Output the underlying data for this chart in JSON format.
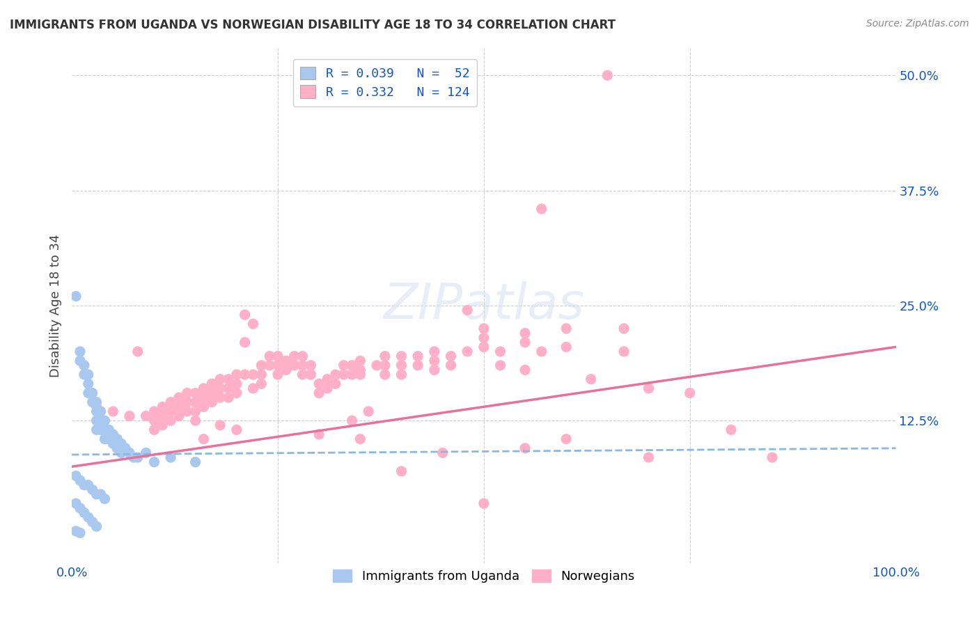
{
  "title": "IMMIGRANTS FROM UGANDA VS NORWEGIAN DISABILITY AGE 18 TO 34 CORRELATION CHART",
  "source": "Source: ZipAtlas.com",
  "ylabel": "Disability Age 18 to 34",
  "xlim": [
    0.0,
    1.0
  ],
  "ylim": [
    -0.03,
    0.53
  ],
  "ytick_values": [
    0.125,
    0.25,
    0.375,
    0.5
  ],
  "ytick_labels": [
    "12.5%",
    "25.0%",
    "37.5%",
    "50.0%"
  ],
  "grid_color": "#cccccc",
  "background_color": "#ffffff",
  "uganda_color": "#a8c8f0",
  "norway_color": "#ffb0c8",
  "uganda_line_color": "#88b8e8",
  "norway_line_color": "#e8709a",
  "uganda_R": 0.039,
  "uganda_N": 52,
  "norway_R": 0.332,
  "norway_N": 124,
  "legend_R_color": "#1155cc",
  "legend_label_uganda": "Immigrants from Uganda",
  "legend_label_norway": "Norwegians",
  "uganda_scatter": [
    [
      0.005,
      0.26
    ],
    [
      0.01,
      0.2
    ],
    [
      0.01,
      0.19
    ],
    [
      0.015,
      0.185
    ],
    [
      0.015,
      0.175
    ],
    [
      0.02,
      0.175
    ],
    [
      0.02,
      0.165
    ],
    [
      0.02,
      0.155
    ],
    [
      0.025,
      0.155
    ],
    [
      0.025,
      0.145
    ],
    [
      0.03,
      0.145
    ],
    [
      0.03,
      0.135
    ],
    [
      0.03,
      0.125
    ],
    [
      0.03,
      0.115
    ],
    [
      0.035,
      0.135
    ],
    [
      0.035,
      0.125
    ],
    [
      0.035,
      0.115
    ],
    [
      0.04,
      0.125
    ],
    [
      0.04,
      0.115
    ],
    [
      0.04,
      0.105
    ],
    [
      0.045,
      0.115
    ],
    [
      0.045,
      0.105
    ],
    [
      0.05,
      0.11
    ],
    [
      0.05,
      0.1
    ],
    [
      0.055,
      0.105
    ],
    [
      0.055,
      0.095
    ],
    [
      0.06,
      0.1
    ],
    [
      0.06,
      0.09
    ],
    [
      0.065,
      0.095
    ],
    [
      0.07,
      0.09
    ],
    [
      0.075,
      0.085
    ],
    [
      0.08,
      0.085
    ],
    [
      0.09,
      0.09
    ],
    [
      0.1,
      0.08
    ],
    [
      0.12,
      0.085
    ],
    [
      0.15,
      0.08
    ],
    [
      0.005,
      0.065
    ],
    [
      0.01,
      0.06
    ],
    [
      0.015,
      0.055
    ],
    [
      0.02,
      0.055
    ],
    [
      0.025,
      0.05
    ],
    [
      0.03,
      0.045
    ],
    [
      0.035,
      0.045
    ],
    [
      0.04,
      0.04
    ],
    [
      0.005,
      0.035
    ],
    [
      0.01,
      0.03
    ],
    [
      0.015,
      0.025
    ],
    [
      0.02,
      0.02
    ],
    [
      0.025,
      0.015
    ],
    [
      0.03,
      0.01
    ],
    [
      0.005,
      0.005
    ],
    [
      0.01,
      0.003
    ]
  ],
  "norway_scatter": [
    [
      0.03,
      0.14
    ],
    [
      0.05,
      0.135
    ],
    [
      0.07,
      0.13
    ],
    [
      0.08,
      0.2
    ],
    [
      0.09,
      0.13
    ],
    [
      0.1,
      0.135
    ],
    [
      0.1,
      0.125
    ],
    [
      0.1,
      0.115
    ],
    [
      0.11,
      0.14
    ],
    [
      0.11,
      0.13
    ],
    [
      0.11,
      0.12
    ],
    [
      0.12,
      0.145
    ],
    [
      0.12,
      0.135
    ],
    [
      0.12,
      0.125
    ],
    [
      0.13,
      0.15
    ],
    [
      0.13,
      0.14
    ],
    [
      0.13,
      0.13
    ],
    [
      0.14,
      0.155
    ],
    [
      0.14,
      0.145
    ],
    [
      0.14,
      0.135
    ],
    [
      0.15,
      0.155
    ],
    [
      0.15,
      0.145
    ],
    [
      0.15,
      0.135
    ],
    [
      0.15,
      0.125
    ],
    [
      0.16,
      0.16
    ],
    [
      0.16,
      0.15
    ],
    [
      0.16,
      0.14
    ],
    [
      0.16,
      0.105
    ],
    [
      0.17,
      0.165
    ],
    [
      0.17,
      0.155
    ],
    [
      0.17,
      0.145
    ],
    [
      0.18,
      0.17
    ],
    [
      0.18,
      0.16
    ],
    [
      0.18,
      0.15
    ],
    [
      0.18,
      0.12
    ],
    [
      0.19,
      0.17
    ],
    [
      0.19,
      0.16
    ],
    [
      0.19,
      0.15
    ],
    [
      0.2,
      0.175
    ],
    [
      0.2,
      0.165
    ],
    [
      0.2,
      0.155
    ],
    [
      0.2,
      0.115
    ],
    [
      0.21,
      0.24
    ],
    [
      0.21,
      0.21
    ],
    [
      0.21,
      0.175
    ],
    [
      0.22,
      0.23
    ],
    [
      0.22,
      0.175
    ],
    [
      0.22,
      0.16
    ],
    [
      0.23,
      0.185
    ],
    [
      0.23,
      0.175
    ],
    [
      0.23,
      0.165
    ],
    [
      0.24,
      0.195
    ],
    [
      0.24,
      0.185
    ],
    [
      0.25,
      0.195
    ],
    [
      0.25,
      0.185
    ],
    [
      0.25,
      0.175
    ],
    [
      0.26,
      0.19
    ],
    [
      0.26,
      0.18
    ],
    [
      0.27,
      0.195
    ],
    [
      0.27,
      0.185
    ],
    [
      0.28,
      0.195
    ],
    [
      0.28,
      0.185
    ],
    [
      0.28,
      0.175
    ],
    [
      0.29,
      0.185
    ],
    [
      0.29,
      0.175
    ],
    [
      0.3,
      0.165
    ],
    [
      0.3,
      0.155
    ],
    [
      0.3,
      0.11
    ],
    [
      0.31,
      0.17
    ],
    [
      0.31,
      0.16
    ],
    [
      0.32,
      0.175
    ],
    [
      0.32,
      0.165
    ],
    [
      0.33,
      0.185
    ],
    [
      0.33,
      0.175
    ],
    [
      0.34,
      0.185
    ],
    [
      0.34,
      0.175
    ],
    [
      0.34,
      0.125
    ],
    [
      0.35,
      0.19
    ],
    [
      0.35,
      0.18
    ],
    [
      0.35,
      0.175
    ],
    [
      0.35,
      0.105
    ],
    [
      0.36,
      0.135
    ],
    [
      0.37,
      0.185
    ],
    [
      0.38,
      0.195
    ],
    [
      0.38,
      0.185
    ],
    [
      0.38,
      0.175
    ],
    [
      0.4,
      0.195
    ],
    [
      0.4,
      0.185
    ],
    [
      0.4,
      0.175
    ],
    [
      0.42,
      0.195
    ],
    [
      0.42,
      0.185
    ],
    [
      0.44,
      0.2
    ],
    [
      0.44,
      0.19
    ],
    [
      0.44,
      0.18
    ],
    [
      0.46,
      0.195
    ],
    [
      0.46,
      0.185
    ],
    [
      0.48,
      0.245
    ],
    [
      0.48,
      0.2
    ],
    [
      0.5,
      0.225
    ],
    [
      0.5,
      0.215
    ],
    [
      0.5,
      0.205
    ],
    [
      0.52,
      0.2
    ],
    [
      0.52,
      0.185
    ],
    [
      0.55,
      0.22
    ],
    [
      0.55,
      0.21
    ],
    [
      0.55,
      0.18
    ],
    [
      0.57,
      0.355
    ],
    [
      0.57,
      0.2
    ],
    [
      0.6,
      0.225
    ],
    [
      0.6,
      0.205
    ],
    [
      0.63,
      0.17
    ],
    [
      0.65,
      0.5
    ],
    [
      0.67,
      0.225
    ],
    [
      0.67,
      0.2
    ],
    [
      0.7,
      0.16
    ],
    [
      0.7,
      0.085
    ],
    [
      0.75,
      0.155
    ],
    [
      0.8,
      0.115
    ],
    [
      0.85,
      0.085
    ],
    [
      0.5,
      0.035
    ],
    [
      0.55,
      0.095
    ],
    [
      0.6,
      0.105
    ],
    [
      0.4,
      0.07
    ],
    [
      0.45,
      0.09
    ]
  ],
  "uganda_trend_x": [
    0.0,
    1.0
  ],
  "uganda_trend_y": [
    0.088,
    0.095
  ],
  "norway_trend_x": [
    0.0,
    1.0
  ],
  "norway_trend_y": [
    0.075,
    0.205
  ]
}
